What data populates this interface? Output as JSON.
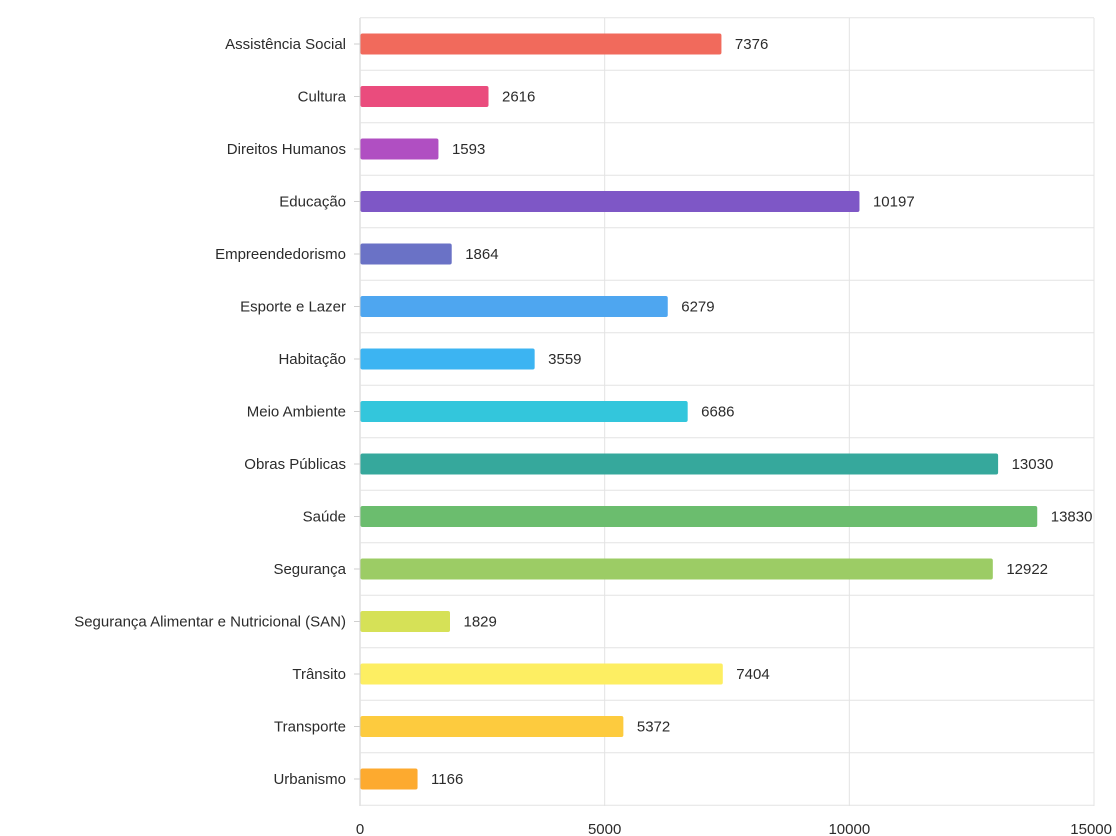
{
  "chart_data": {
    "type": "bar",
    "orientation": "horizontal",
    "title": "",
    "xlabel": "",
    "ylabel": "",
    "xlim": [
      0,
      15000
    ],
    "x_ticks": [
      0,
      5000,
      10000,
      15000
    ],
    "grid": true,
    "legend": "none",
    "categories": [
      "Assistência Social",
      "Cultura",
      "Direitos Humanos",
      "Educação",
      "Empreendedorismo",
      "Esporte e Lazer",
      "Habitação",
      "Meio Ambiente",
      "Obras Públicas",
      "Saúde",
      "Segurança",
      "Segurança Alimentar e Nutricional (SAN)",
      "Trânsito",
      "Transporte",
      "Urbanismo"
    ],
    "values": [
      7376,
      2616,
      1593,
      10197,
      1864,
      6279,
      3559,
      6686,
      13030,
      13830,
      12922,
      1829,
      7404,
      5372,
      1166
    ],
    "colors": [
      "#f16a5c",
      "#ea4c7d",
      "#b04fc2",
      "#7e57c6",
      "#6a72c6",
      "#4ea6f0",
      "#3cb4f2",
      "#33c6dc",
      "#36a89c",
      "#6bbd6e",
      "#9ccc65",
      "#d6e157",
      "#fdee62",
      "#fdcb3e",
      "#fdaa2f"
    ]
  }
}
